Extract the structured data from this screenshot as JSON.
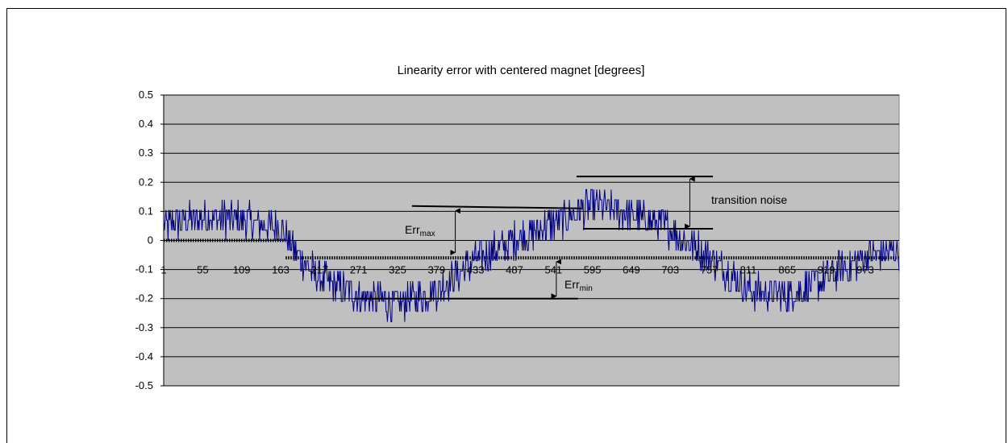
{
  "chart_data": {
    "type": "line",
    "title": "Linearity error with centered magnet [degrees]",
    "xlabel": "",
    "ylabel": "",
    "ylim": [
      -0.5,
      0.5
    ],
    "yticks": [
      "0.5",
      "0.4",
      "0.3",
      "0.2",
      "0.1",
      "0",
      "-0.1",
      "-0.2",
      "-0.3",
      "-0.4",
      "-0.5"
    ],
    "xlim": [
      1,
      1020
    ],
    "xticks": [
      "1",
      "55",
      "109",
      "163",
      "217",
      "271",
      "325",
      "379",
      "433",
      "487",
      "541",
      "595",
      "649",
      "703",
      "757",
      "811",
      "865",
      "919",
      "973"
    ],
    "grid": true,
    "plot_background": "#c0c0c0",
    "series": [
      {
        "color": "#000080",
        "description": "noisy periodic linearity error, quantised in ~0.035 deg steps",
        "envelope_points": [
          [
            1,
            0.05
          ],
          [
            60,
            0.08
          ],
          [
            120,
            0.07
          ],
          [
            163,
            0.04
          ],
          [
            190,
            -0.06
          ],
          [
            217,
            -0.13
          ],
          [
            271,
            -0.19
          ],
          [
            325,
            -0.22
          ],
          [
            379,
            -0.17
          ],
          [
            433,
            -0.07
          ],
          [
            487,
            0.0
          ],
          [
            541,
            0.06
          ],
          [
            595,
            0.12
          ],
          [
            649,
            0.09
          ],
          [
            703,
            0.04
          ],
          [
            757,
            -0.06
          ],
          [
            811,
            -0.17
          ],
          [
            865,
            -0.19
          ],
          [
            919,
            -0.13
          ],
          [
            973,
            -0.06
          ],
          [
            1020,
            -0.03
          ]
        ],
        "noise_amplitude": 0.06
      }
    ],
    "annotations": [
      {
        "text": "Err",
        "sub": "max"
      },
      {
        "text": "Err",
        "sub": "min"
      },
      {
        "text": "transition noise"
      }
    ],
    "reference_levels": {
      "zero_band": 0,
      "center_band": -0.06,
      "err_max": 0.11,
      "err_min": -0.2,
      "transition_noise_top": 0.22,
      "transition_noise_bottom": 0.04
    }
  }
}
